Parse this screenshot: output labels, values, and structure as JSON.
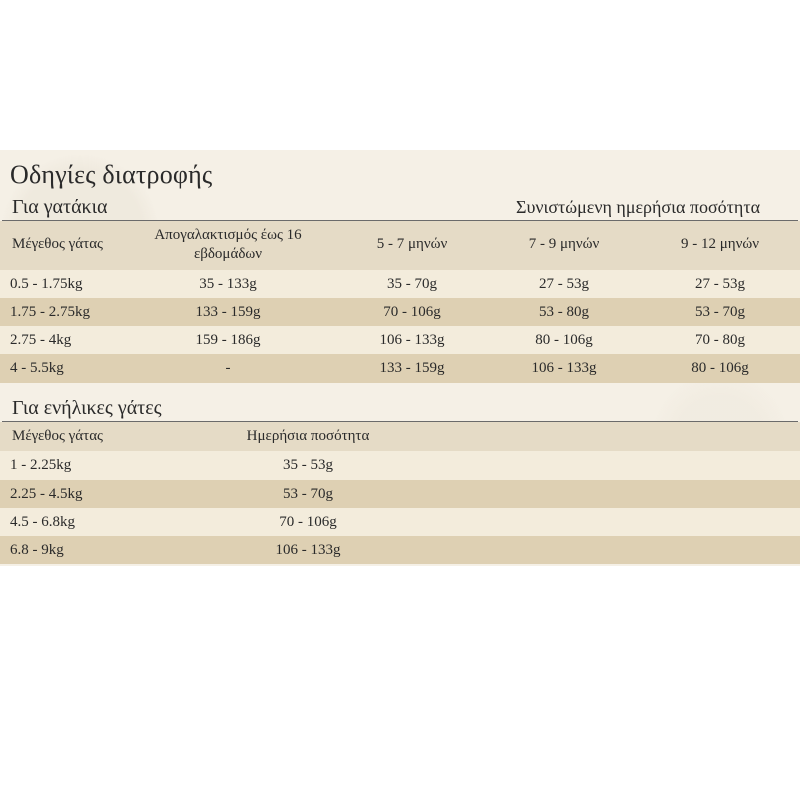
{
  "colors": {
    "page_bg": "#ffffff",
    "panel_bg": "#f5f0e6",
    "header_row_bg": "#e5dbc6",
    "row_odd_bg": "#f3ecdc",
    "row_even_bg": "#ded0b3",
    "divider": "#6b6b6b",
    "text": "#2a2a2a"
  },
  "typography": {
    "title_size_pt": 20,
    "subtitle_size_pt": 15,
    "header_cell_size_pt": 11,
    "body_cell_size_pt": 11,
    "family": "serif"
  },
  "title": "Οδηγίες διατροφής",
  "kittens": {
    "subtitle": "Για γατάκια",
    "recommended_label": "Συνιστώμενη ημερήσια ποσότητα",
    "columns": [
      "Μέγεθος γάτας",
      "Απογαλακτισμός έως 16 εβδομάδων",
      "5 - 7 μηνών",
      "7 - 9 μηνών",
      "9 - 12 μηνών"
    ],
    "rows": [
      [
        "0.5 - 1.75kg",
        "35 - 133g",
        "35 - 70g",
        "27 - 53g",
        "27 - 53g"
      ],
      [
        "1.75 - 2.75kg",
        "133 - 159g",
        "70 - 106g",
        "53 - 80g",
        "53 - 70g"
      ],
      [
        "2.75 - 4kg",
        "159 - 186g",
        "106 - 133g",
        "80 - 106g",
        "70 - 80g"
      ],
      [
        "4 - 5.5kg",
        "-",
        "133 - 159g",
        "106 - 133g",
        "80 - 106g"
      ]
    ]
  },
  "adults": {
    "subtitle": "Για ενήλικες γάτες",
    "columns": [
      "Μέγεθος γάτας",
      "Ημερήσια ποσότητα",
      ""
    ],
    "rows": [
      [
        "1 - 2.25kg",
        "35 - 53g",
        ""
      ],
      [
        "2.25 - 4.5kg",
        "53 - 70g",
        ""
      ],
      [
        "4.5 - 6.8kg",
        "70 - 106g",
        ""
      ],
      [
        "6.8 - 9kg",
        "106 - 133g",
        ""
      ]
    ]
  }
}
